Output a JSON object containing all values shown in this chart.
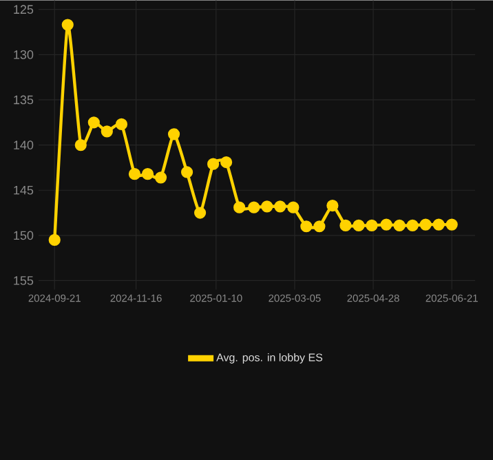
{
  "chart_data": {
    "type": "line",
    "x": [
      "2024-09-21",
      "2024-09-30",
      "2024-10-09",
      "2024-10-18",
      "2024-10-27",
      "2024-11-06",
      "2024-11-15",
      "2024-11-24",
      "2024-12-03",
      "2024-12-12",
      "2024-12-21",
      "2024-12-30",
      "2025-01-08",
      "2025-01-17",
      "2025-01-26",
      "2025-02-05",
      "2025-02-14",
      "2025-02-23",
      "2025-03-04",
      "2025-03-13",
      "2025-03-22",
      "2025-03-31",
      "2025-04-09",
      "2025-04-18",
      "2025-04-27",
      "2025-05-07",
      "2025-05-16",
      "2025-05-25",
      "2025-06-03",
      "2025-06-12",
      "2025-06-21"
    ],
    "series": [
      {
        "name": "Avg. pos. in lobby ES",
        "color": "#ffd200",
        "values": [
          150.5,
          126.7,
          140,
          137.5,
          138.5,
          137.7,
          143.2,
          143.2,
          143.6,
          138.8,
          143,
          147.5,
          142.1,
          141.9,
          146.9,
          146.9,
          146.8,
          146.8,
          146.9,
          149,
          149,
          146.7,
          148.9,
          148.9,
          148.9,
          148.8,
          148.9,
          148.9,
          148.8,
          148.8,
          148.8
        ]
      }
    ],
    "ylim": [
      156,
      124
    ],
    "yticks": [
      125,
      130,
      135,
      140,
      145,
      150,
      155
    ],
    "xlim": [
      "2024-09-10",
      "2025-07-07"
    ],
    "xticks": [
      "2024-09-21",
      "2024-11-16",
      "2025-01-10",
      "2025-03-05",
      "2025-04-28",
      "2025-06-21"
    ],
    "grid": true,
    "legend": "bottom",
    "marker": "circle",
    "line_style": "solid"
  }
}
